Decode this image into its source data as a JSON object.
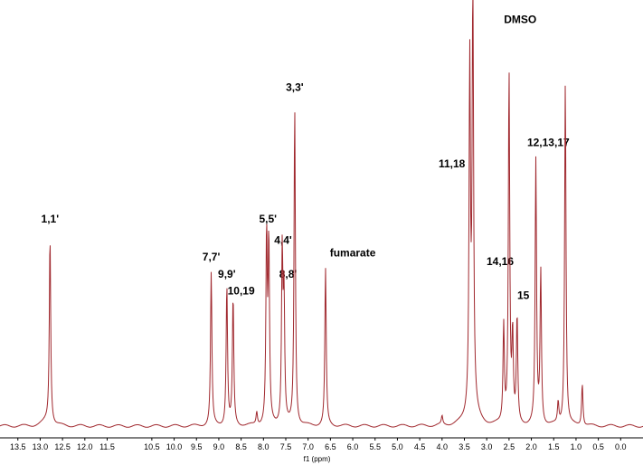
{
  "chart_data": {
    "type": "line",
    "xlabel": "f1 (ppm)",
    "xlim": [
      13.9,
      -0.5
    ],
    "x_reversed": true,
    "x_ticks": [
      13.5,
      13.0,
      12.5,
      12.0,
      11.5,
      10.5,
      10.0,
      9.5,
      9.0,
      8.5,
      8.0,
      7.5,
      7.0,
      6.5,
      6.0,
      5.5,
      5.0,
      4.5,
      4.0,
      3.5,
      3.0,
      2.5,
      2.0,
      1.5,
      1.0,
      0.5,
      0.0
    ],
    "x_tick_labels": [
      "13.5",
      "13.0",
      "12.5",
      "12.0",
      "11.5",
      "10.5",
      "10.0",
      "9.5",
      "9.0",
      "8.5",
      "8.0",
      "7.5",
      "7.0",
      "6.5",
      "6.0",
      "5.5",
      "5.0",
      "4.5",
      "4.0",
      "3.5",
      "3.0",
      "2.5",
      "2.0",
      "1.5",
      "1.0",
      "0.5",
      "0.0"
    ],
    "ylim": [
      0,
      1
    ],
    "grid": false,
    "series_color": "#a0282e",
    "peaks": [
      {
        "ppm": 12.78,
        "height": 0.44
      },
      {
        "ppm": 9.17,
        "height": 0.36
      },
      {
        "ppm": 8.82,
        "height": 0.33
      },
      {
        "ppm": 8.68,
        "height": 0.3
      },
      {
        "ppm": 8.15,
        "height": 0.03
      },
      {
        "ppm": 7.93,
        "height": 0.44
      },
      {
        "ppm": 7.88,
        "height": 0.42
      },
      {
        "ppm": 7.58,
        "height": 0.4
      },
      {
        "ppm": 7.54,
        "height": 0.29
      },
      {
        "ppm": 7.3,
        "height": 0.75
      },
      {
        "ppm": 6.61,
        "height": 0.37
      },
      {
        "ppm": 4.0,
        "height": 0.02
      },
      {
        "ppm": 3.38,
        "height": 0.81
      },
      {
        "ppm": 3.31,
        "height": 1.0
      },
      {
        "ppm": 2.62,
        "height": 0.23
      },
      {
        "ppm": 2.5,
        "height": 0.83
      },
      {
        "ppm": 2.42,
        "height": 0.2
      },
      {
        "ppm": 2.32,
        "height": 0.25
      },
      {
        "ppm": 1.9,
        "height": 0.62
      },
      {
        "ppm": 1.79,
        "height": 0.36
      },
      {
        "ppm": 1.4,
        "height": 0.05
      },
      {
        "ppm": 1.24,
        "height": 0.81
      },
      {
        "ppm": 0.86,
        "height": 0.1
      }
    ],
    "annotations": [
      {
        "text": "1,1'",
        "ppm": 12.78,
        "height": 0.48
      },
      {
        "text": "7,7'",
        "ppm": 9.17,
        "height": 0.39
      },
      {
        "text": "9,9'",
        "ppm": 8.82,
        "height": 0.35
      },
      {
        "text": "10,19",
        "ppm": 8.5,
        "height": 0.31
      },
      {
        "text": "5,5'",
        "ppm": 7.9,
        "height": 0.48
      },
      {
        "text": "4,4'",
        "ppm": 7.56,
        "height": 0.43
      },
      {
        "text": "8,8'",
        "ppm": 7.45,
        "height": 0.35
      },
      {
        "text": "3,3'",
        "ppm": 7.3,
        "height": 0.79
      },
      {
        "text": "fumarate",
        "ppm": 6.0,
        "height": 0.4
      },
      {
        "text": "11,18",
        "ppm": 3.78,
        "height": 0.61
      },
      {
        "text": "14,16",
        "ppm": 2.7,
        "height": 0.38
      },
      {
        "text": "15",
        "ppm": 2.18,
        "height": 0.3
      },
      {
        "text": "DMSO",
        "ppm": 2.25,
        "height": 0.95
      },
      {
        "text": "12,13,17",
        "ppm": 1.62,
        "height": 0.66
      }
    ]
  }
}
